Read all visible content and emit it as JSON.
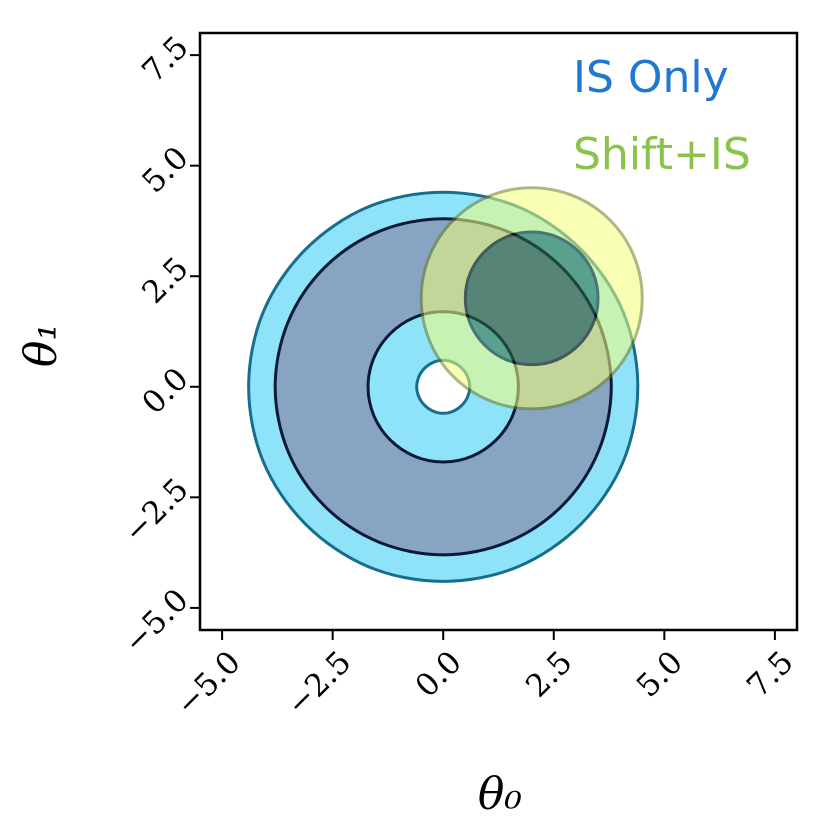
{
  "chart_data": {
    "type": "contour",
    "xlabel": "θ₀",
    "ylabel": "θ₁",
    "xlim": [
      -5.5,
      8
    ],
    "ylim": [
      -5.5,
      8
    ],
    "xticks": [
      {
        "value": -5,
        "label": "−5.0"
      },
      {
        "value": -2.5,
        "label": "−2.5"
      },
      {
        "value": 0,
        "label": "0.0"
      },
      2.5,
      {
        "value": 5,
        "label": "5.0"
      },
      7.5
    ],
    "yticks": [
      {
        "value": -5,
        "label": "−5.0"
      },
      {
        "value": -2.5,
        "label": "−2.5"
      },
      {
        "value": 0,
        "label": "0.0"
      },
      2.5,
      {
        "value": 5,
        "label": "5.0"
      },
      7.5
    ],
    "legend": "upper right",
    "series": [
      {
        "name": "IS Only",
        "color": "#1f78d1",
        "opacity": 1,
        "contours": [
          {
            "fill": "#8fe3f9",
            "stroke": "#176e8c",
            "x": [
              4.4,
              4.07,
              3.11,
              1.69,
              0,
              -1.69,
              -3.11,
              -4.07,
              -4.4,
              -4.07,
              -3.11,
              -1.69,
              0,
              1.69,
              3.11,
              4.07
            ],
            "y": [
              0,
              1.69,
              3.11,
              4.07,
              4.4,
              4.07,
              3.11,
              1.69,
              0,
              -1.69,
              -3.11,
              -4.07,
              -4.4,
              -4.07,
              -3.11,
              -1.69
            ]
          },
          {
            "fill": "#87a4c3",
            "stroke": "#0b1a38",
            "x": [
              3.8,
              3.51,
              2.69,
              1.46,
              0,
              -1.46,
              -2.69,
              -3.51,
              -3.8,
              -3.51,
              -2.69,
              -1.46,
              0,
              1.46,
              2.69,
              3.51
            ],
            "y": [
              0,
              1.46,
              2.69,
              3.51,
              3.8,
              3.51,
              2.69,
              1.46,
              0,
              -1.46,
              -2.69,
              -3.51,
              -3.8,
              -3.51,
              -2.69,
              -1.46
            ]
          },
          {
            "fill": "#8fe3f9",
            "stroke": "#0b1a38",
            "x": [
              1.7,
              1.57,
              1.2,
              0.65,
              0,
              -0.65,
              -1.2,
              -1.57,
              -1.7,
              -1.57,
              -1.2,
              -0.65,
              0,
              0.65,
              1.2,
              1.57
            ],
            "y": [
              0,
              0.65,
              1.2,
              1.57,
              1.7,
              1.57,
              1.2,
              0.65,
              0,
              -0.65,
              -1.2,
              -1.57,
              -1.7,
              -1.57,
              -1.2,
              -0.65
            ]
          },
          {
            "fill": "#ffffff",
            "stroke": "#176e8c",
            "x": [
              0.6,
              0.55,
              0.42,
              0.23,
              0,
              -0.23,
              -0.42,
              -0.55,
              -0.6,
              -0.55,
              -0.42,
              -0.23,
              0,
              0.23,
              0.42,
              0.55
            ],
            "y": [
              0,
              0.23,
              0.42,
              0.55,
              0.6,
              0.55,
              0.42,
              0.23,
              0,
              -0.23,
              -0.42,
              -0.55,
              -0.6,
              -0.55,
              -0.42,
              -0.23
            ]
          }
        ]
      },
      {
        "name": "Shift+IS",
        "color": "#8bc34a",
        "opacity": 0.55,
        "contours": [
          {
            "fill": "#f4ff7a",
            "stroke": "#6f7f20",
            "x": [
              4.5,
              4.31,
              3.77,
              2.96,
              2,
              1.04,
              0.23,
              -0.31,
              -0.5,
              -0.31,
              0.23,
              1.04,
              2,
              2.96,
              3.77,
              4.31
            ],
            "y": [
              2,
              2.96,
              3.77,
              4.31,
              4.5,
              4.31,
              3.77,
              2.96,
              2,
              1.04,
              0.23,
              -0.31,
              -0.5,
              -0.31,
              0.23,
              1.04
            ]
          },
          {
            "fill": "#2f6a3a",
            "stroke": "#0e1e08",
            "x": [
              3.5,
              3.39,
              3.06,
              2.57,
              2,
              1.43,
              0.94,
              0.61,
              0.5,
              0.61,
              0.94,
              1.43,
              2,
              2.57,
              3.06,
              3.39
            ],
            "y": [
              2,
              2.57,
              3.06,
              3.39,
              3.5,
              3.39,
              3.06,
              2.57,
              2,
              1.43,
              0.94,
              0.61,
              0.5,
              0.61,
              0.94,
              1.43
            ]
          }
        ]
      }
    ]
  }
}
